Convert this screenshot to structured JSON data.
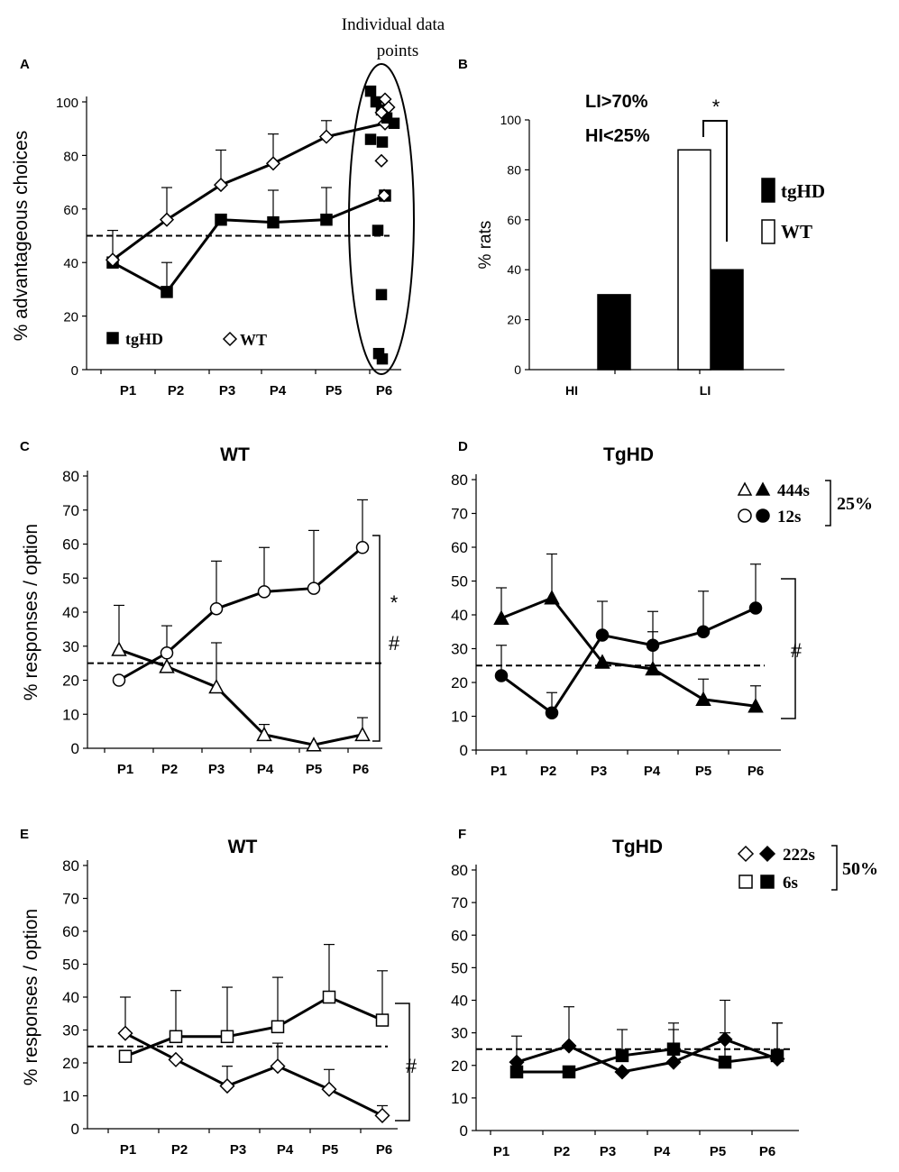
{
  "colors": {
    "ink": "#000000",
    "paper": "#ffffff"
  },
  "chart_data": [
    {
      "panel": "A",
      "type": "line",
      "title": "",
      "xlabel": "",
      "ylabel": "% advantageous choices",
      "categories": [
        "P1",
        "P2",
        "P3",
        "P4",
        "P5",
        "P6"
      ],
      "ylim": [
        0,
        100
      ],
      "yticks": [
        0,
        20,
        40,
        60,
        80,
        100
      ],
      "reference_line": 50,
      "series": [
        {
          "name": "tgHD",
          "marker": "square-filled",
          "values": [
            40,
            29,
            56,
            55,
            56,
            65
          ],
          "errors": [
            0,
            11,
            0,
            12,
            12,
            0
          ]
        },
        {
          "name": "WT",
          "marker": "diamond-open",
          "values": [
            41,
            56,
            69,
            77,
            87,
            92
          ],
          "errors": [
            11,
            12,
            13,
            11,
            6,
            0
          ]
        }
      ],
      "legend": [
        {
          "label": "tgHD",
          "marker": "square-filled"
        },
        {
          "label": "WT",
          "marker": "diamond-open"
        }
      ],
      "annotation": "Individual data points",
      "individual_points": {
        "tgHD": [
          104,
          100,
          97,
          94,
          92,
          86,
          85,
          52,
          28,
          6,
          4
        ],
        "WT": [
          101,
          98,
          96,
          78,
          65
        ]
      }
    },
    {
      "panel": "B",
      "type": "bar",
      "ylabel": "% rats",
      "categories": [
        "HI",
        "LI"
      ],
      "ylim": [
        0,
        100
      ],
      "yticks": [
        0,
        20,
        40,
        60,
        80,
        100
      ],
      "series": [
        {
          "name": "tgHD",
          "fill": "black",
          "values": [
            30,
            40
          ]
        },
        {
          "name": "WT",
          "fill": "white",
          "values": [
            0,
            88
          ]
        }
      ],
      "legend": [
        {
          "label": "tgHD",
          "swatch": "black"
        },
        {
          "label": "WT",
          "swatch": "white"
        }
      ],
      "annotations": [
        "LI>70%",
        "HI<25%",
        "*"
      ]
    },
    {
      "panel": "C",
      "type": "line",
      "title": "WT",
      "ylabel": "% responses / option",
      "categories": [
        "P1",
        "P2",
        "P3",
        "P4",
        "P5",
        "P6"
      ],
      "ylim": [
        0,
        80
      ],
      "yticks": [
        0,
        10,
        20,
        30,
        40,
        50,
        60,
        70,
        80
      ],
      "reference_line": 25,
      "series": [
        {
          "name": "12s",
          "marker": "circle-open",
          "values": [
            20,
            28,
            41,
            46,
            47,
            59
          ],
          "errors": [
            0,
            8,
            14,
            13,
            17,
            14
          ]
        },
        {
          "name": "444s",
          "marker": "triangle-open",
          "values": [
            29,
            24,
            18,
            4,
            1,
            4
          ],
          "errors": [
            13,
            0,
            13,
            3,
            0,
            5
          ]
        }
      ],
      "annotations": [
        "*",
        "#"
      ]
    },
    {
      "panel": "D",
      "type": "line",
      "title": "TgHD",
      "ylabel": "",
      "categories": [
        "P1",
        "P2",
        "P3",
        "P4",
        "P5",
        "P6"
      ],
      "ylim": [
        0,
        80
      ],
      "yticks": [
        0,
        10,
        20,
        30,
        40,
        50,
        60,
        70,
        80
      ],
      "reference_line": 25,
      "series": [
        {
          "name": "444s",
          "marker": "triangle-filled",
          "values": [
            39,
            45,
            26,
            24,
            15,
            13
          ],
          "errors": [
            9,
            13,
            0,
            11,
            6,
            6
          ]
        },
        {
          "name": "12s",
          "marker": "circle-filled",
          "values": [
            22,
            11,
            34,
            31,
            35,
            42
          ],
          "errors": [
            9,
            6,
            10,
            10,
            12,
            13
          ]
        }
      ],
      "legend": [
        {
          "label": "444s",
          "markers": [
            "triangle-open",
            "triangle-filled"
          ]
        },
        {
          "label": "12s",
          "markers": [
            "circle-open",
            "circle-filled"
          ]
        }
      ],
      "legend_group_label": "25%",
      "annotations": [
        "#"
      ]
    },
    {
      "panel": "E",
      "type": "line",
      "title": "WT",
      "ylabel": "% responses / option",
      "categories": [
        "P1",
        "P2",
        "P3",
        "P4",
        "P5",
        "P6"
      ],
      "ylim": [
        0,
        80
      ],
      "yticks": [
        0,
        10,
        20,
        30,
        40,
        50,
        60,
        70,
        80
      ],
      "reference_line": 25,
      "series": [
        {
          "name": "6s",
          "marker": "square-open",
          "values": [
            22,
            28,
            28,
            31,
            40,
            33
          ],
          "errors": [
            0,
            14,
            15,
            15,
            16,
            15
          ]
        },
        {
          "name": "222s",
          "marker": "diamond-open",
          "values": [
            29,
            21,
            13,
            19,
            12,
            4
          ],
          "errors": [
            11,
            0,
            6,
            7,
            6,
            3
          ]
        }
      ],
      "annotations": [
        "#"
      ]
    },
    {
      "panel": "F",
      "type": "line",
      "title": "TgHD",
      "ylabel": "",
      "categories": [
        "P1",
        "P2",
        "P3",
        "P4",
        "P5",
        "P6"
      ],
      "ylim": [
        0,
        80
      ],
      "yticks": [
        0,
        10,
        20,
        30,
        40,
        50,
        60,
        70,
        80
      ],
      "reference_line": 25,
      "series": [
        {
          "name": "6s",
          "marker": "square-filled",
          "values": [
            18,
            18,
            23,
            25,
            21,
            23
          ],
          "errors": [
            0,
            0,
            8,
            8,
            9,
            10
          ]
        },
        {
          "name": "222s",
          "marker": "diamond-filled",
          "values": [
            21,
            26,
            18,
            21,
            28,
            22
          ],
          "errors": [
            8,
            12,
            0,
            10,
            12,
            11
          ]
        }
      ],
      "legend": [
        {
          "label": "222s",
          "markers": [
            "diamond-open",
            "diamond-filled"
          ]
        },
        {
          "label": "6s",
          "markers": [
            "square-open",
            "square-filled"
          ]
        }
      ],
      "legend_group_label": "50%"
    }
  ]
}
